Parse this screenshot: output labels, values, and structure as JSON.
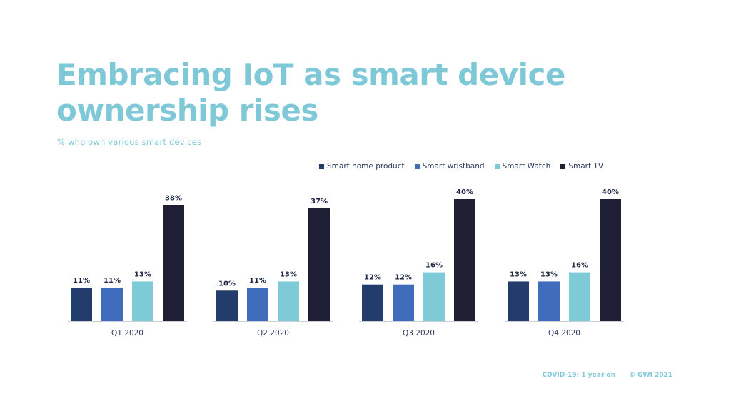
{
  "header": {
    "title": "Embracing IoT as smart device ownership rises",
    "subtitle": "% who own various smart devices"
  },
  "footer": {
    "left": "COVID-19: 1 year on",
    "right": "© GWI 2021"
  },
  "colors": {
    "title": "#7ec8d8",
    "smart_home_product": "#223d6b",
    "smart_wristband": "#3f6cbb",
    "smart_watch": "#7ecad6",
    "smart_tv": "#1e1f34"
  },
  "chart_data": {
    "type": "bar",
    "categories": [
      "Q1 2020",
      "Q2 2020",
      "Q3 2020",
      "Q4 2020"
    ],
    "series": [
      {
        "name": "Smart home product",
        "color": "#223d6b",
        "values": [
          11,
          10,
          12,
          13
        ]
      },
      {
        "name": "Smart wristband",
        "color": "#3f6cbb",
        "values": [
          11,
          11,
          12,
          13
        ]
      },
      {
        "name": "Smart Watch",
        "color": "#7ecad6",
        "values": [
          13,
          13,
          16,
          16
        ]
      },
      {
        "name": "Smart TV",
        "color": "#1e1f34",
        "values": [
          38,
          37,
          40,
          40
        ]
      }
    ],
    "value_suffix": "%",
    "ylim": [
      0,
      40
    ],
    "grid": false,
    "legend_position": "top-right"
  }
}
